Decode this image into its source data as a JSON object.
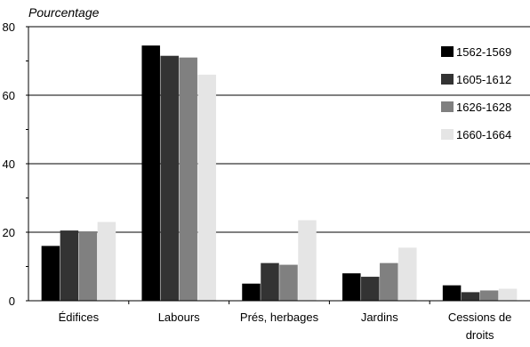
{
  "chart_data": {
    "type": "bar",
    "ylabel": "Pourcentage",
    "xlabel": "",
    "ylim": [
      0,
      80
    ],
    "yticks": [
      0,
      20,
      40,
      60,
      80
    ],
    "grid": true,
    "legend_position": "top-right",
    "categories": [
      "Édifices",
      "Labours",
      "Prés, herbages",
      "Jardins",
      "Cessions de droits"
    ],
    "series": [
      {
        "name": "1562-1569",
        "color": "#000000",
        "values": [
          16.0,
          74.5,
          5.0,
          8.0,
          4.5
        ]
      },
      {
        "name": "1605-1612",
        "color": "#333333",
        "values": [
          20.5,
          71.5,
          11.0,
          7.0,
          2.5
        ]
      },
      {
        "name": "1626-1628",
        "color": "#808080",
        "values": [
          20.0,
          71.0,
          10.5,
          11.0,
          3.0
        ]
      },
      {
        "name": "1660-1664",
        "color": "#e5e5e5",
        "values": [
          23.0,
          66.0,
          23.5,
          15.5,
          3.5
        ]
      }
    ]
  }
}
